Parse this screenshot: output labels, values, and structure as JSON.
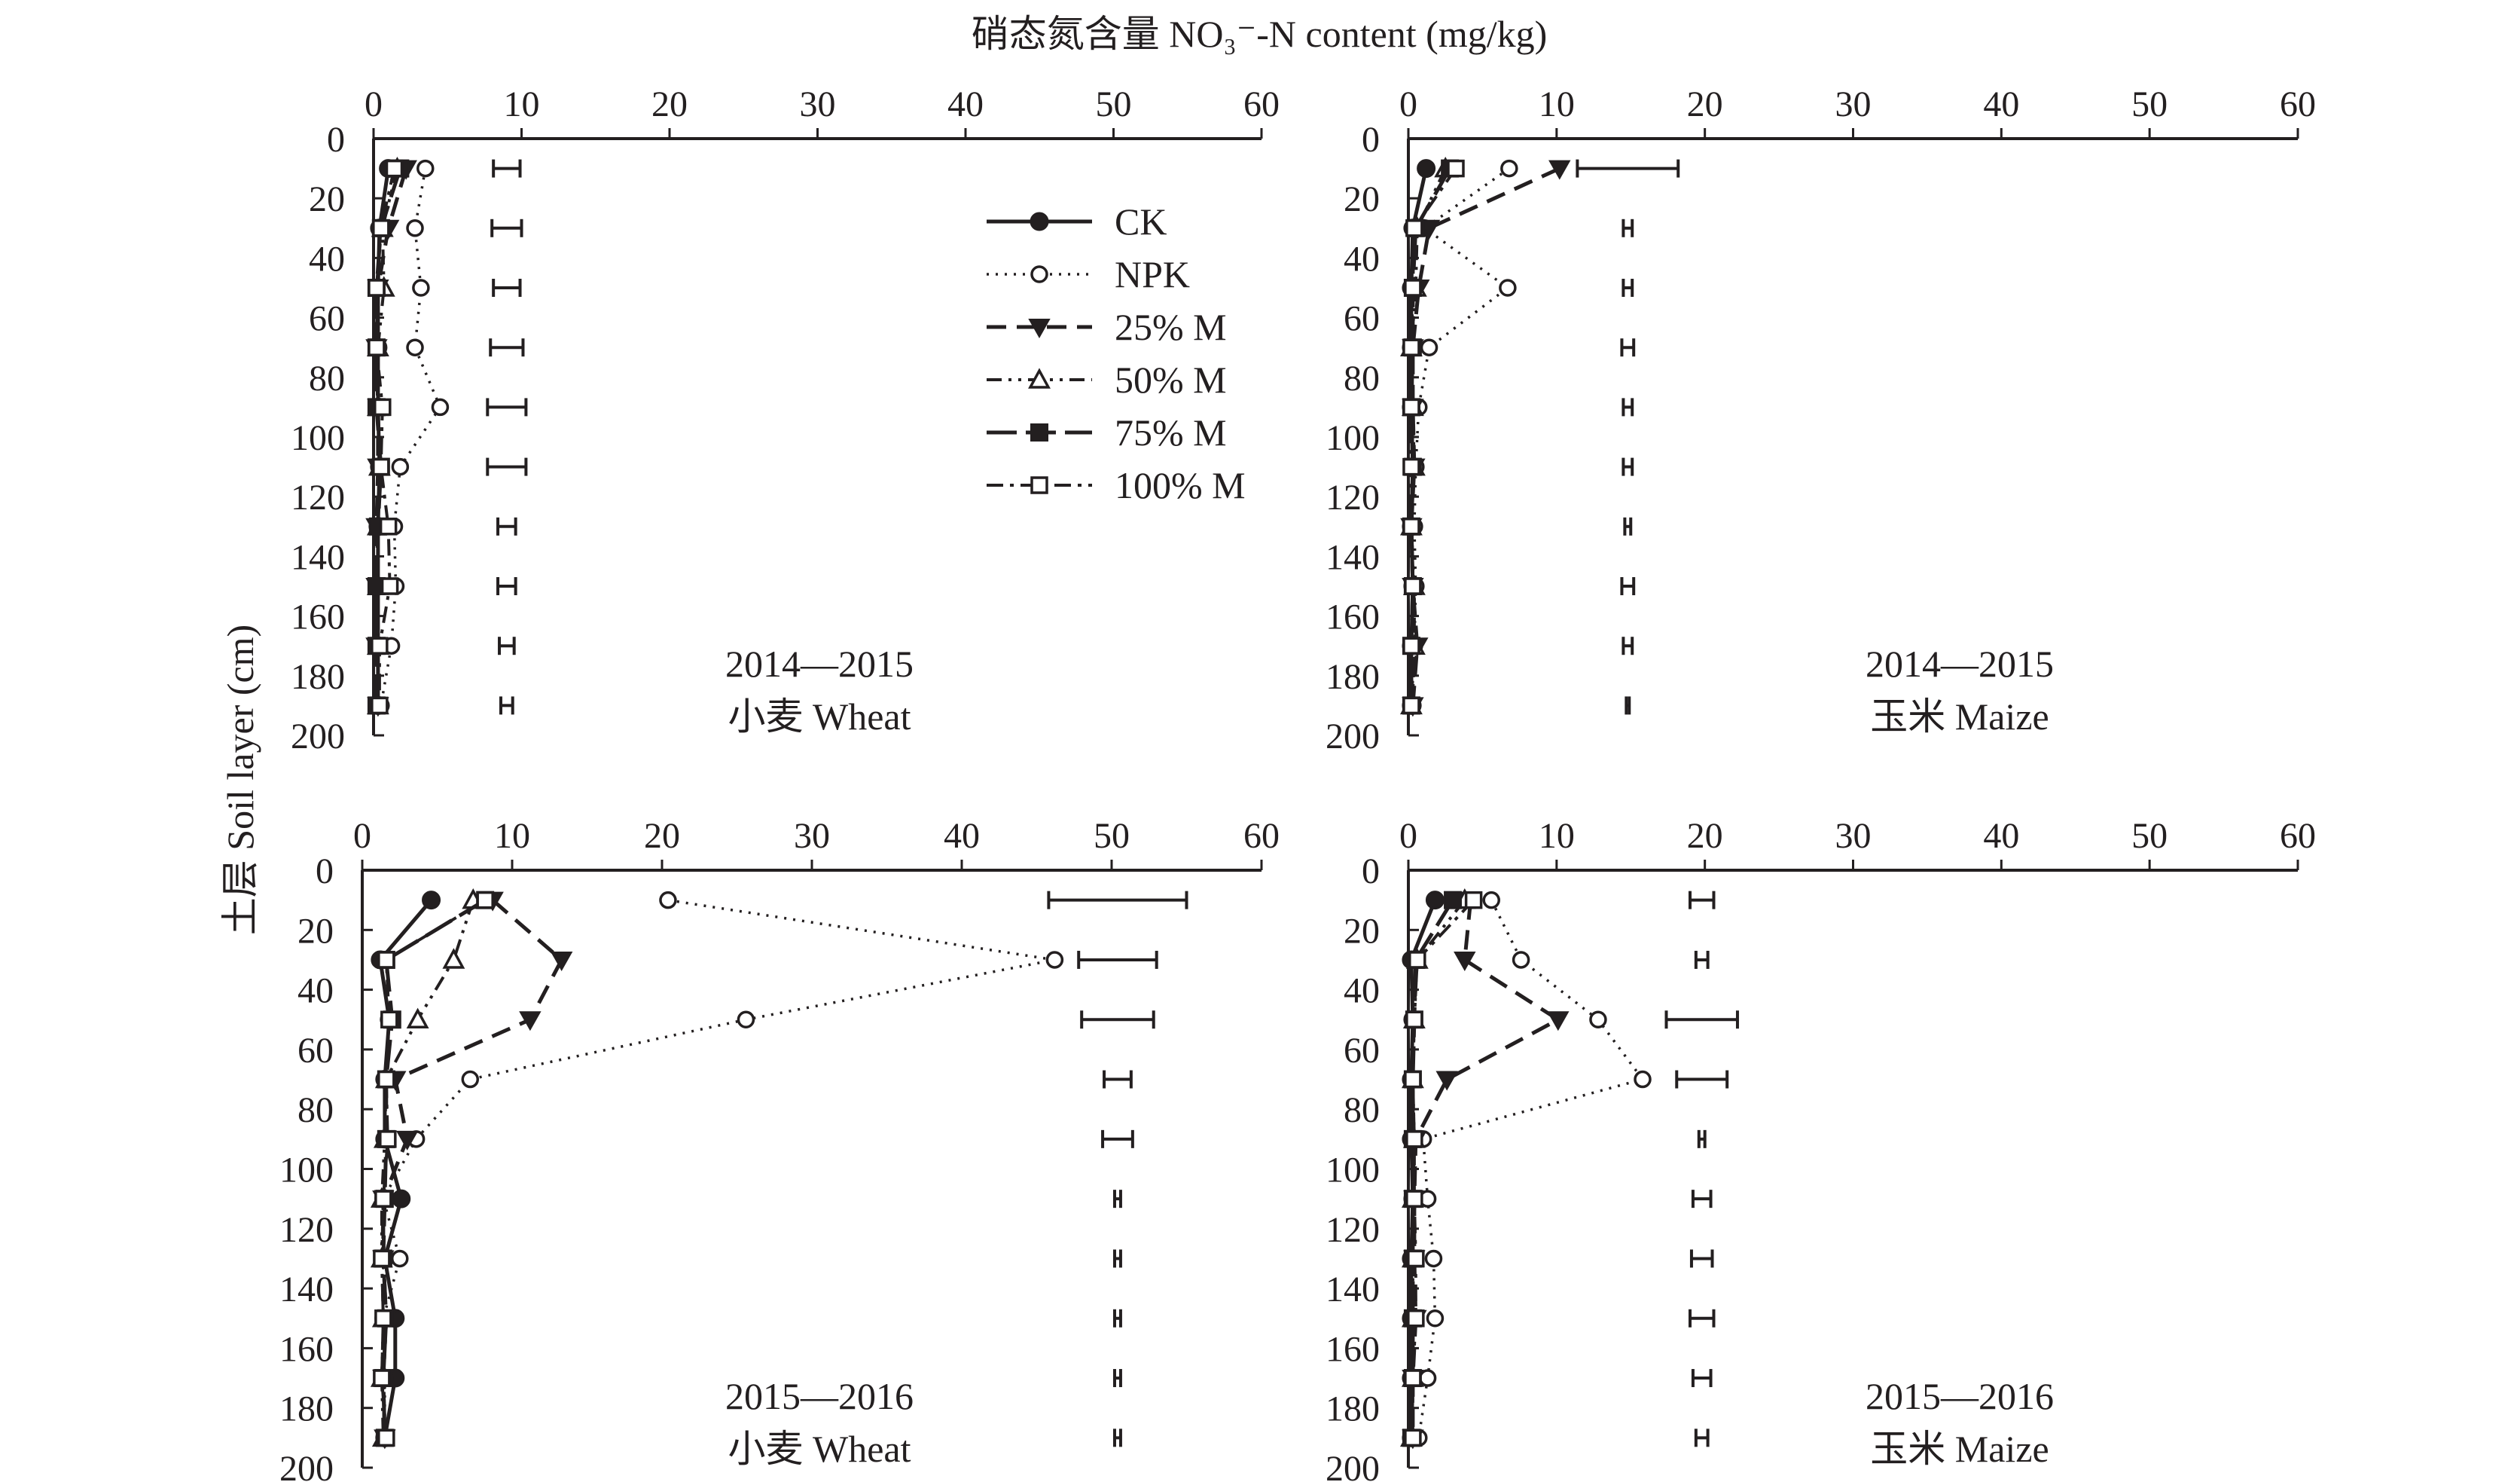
{
  "figure": {
    "x_axis_title": "硝态氮含量 NO₃⁻-N content (mg/kg)",
    "y_axis_title": "土层 Soil layer (cm)"
  },
  "legend": [
    {
      "name": "CK",
      "line": "solid",
      "marker": "circle-filled"
    },
    {
      "name": "NPK",
      "line": "dotted",
      "marker": "circle-open"
    },
    {
      "name": "25% M",
      "line": "dashed",
      "marker": "triangle-down-filled"
    },
    {
      "name": "50% M",
      "line": "dash-dot-dot",
      "marker": "triangle-up-open"
    },
    {
      "name": "75% M",
      "line": "long-dash",
      "marker": "square-filled"
    },
    {
      "name": "100% M",
      "line": "dash-dot",
      "marker": "square-open"
    }
  ],
  "chart_data": [
    {
      "type": "line",
      "panel": "top-left",
      "label_year": "2014—2015",
      "label_crop": "小麦 Wheat",
      "xlim": [
        0,
        60
      ],
      "xticks": [
        0,
        10,
        20,
        30,
        40,
        50,
        60
      ],
      "ylim": [
        0,
        200
      ],
      "yticks": [
        0,
        20,
        40,
        60,
        80,
        100,
        120,
        140,
        160,
        180,
        200
      ],
      "y_reversed": true,
      "depths": [
        10,
        30,
        50,
        70,
        90,
        110,
        130,
        150,
        170,
        190
      ],
      "series": [
        {
          "name": "CK",
          "values": [
            1.0,
            0.4,
            0.3,
            0.3,
            0.3,
            0.4,
            0.3,
            0.3,
            0.3,
            0.3
          ]
        },
        {
          "name": "NPK",
          "values": [
            3.5,
            2.8,
            3.2,
            2.8,
            4.5,
            1.8,
            1.4,
            1.5,
            1.2,
            0.5
          ]
        },
        {
          "name": "25% M",
          "values": [
            2.2,
            1.0,
            0.3,
            0.2,
            0.3,
            0.3,
            0.2,
            0.2,
            0.2,
            0.3
          ]
        },
        {
          "name": "50% M",
          "values": [
            1.6,
            0.6,
            0.7,
            0.3,
            0.3,
            0.4,
            0.3,
            0.3,
            0.3,
            0.3
          ]
        },
        {
          "name": "75% M",
          "values": [
            1.8,
            0.5,
            0.2,
            0.2,
            0.2,
            0.5,
            0.3,
            0.2,
            0.2,
            0.2
          ]
        },
        {
          "name": "100% M",
          "values": [
            1.4,
            0.5,
            0.2,
            0.2,
            0.6,
            0.5,
            1.0,
            1.1,
            0.4,
            0.4
          ]
        }
      ],
      "error_bars": [
        {
          "center": 9.0,
          "half": 0.9
        },
        {
          "center": 9.0,
          "half": 1.0
        },
        {
          "center": 9.0,
          "half": 0.9
        },
        {
          "center": 9.0,
          "half": 1.1
        },
        {
          "center": 9.0,
          "half": 1.3
        },
        {
          "center": 9.0,
          "half": 1.3
        },
        {
          "center": 9.0,
          "half": 0.6
        },
        {
          "center": 9.0,
          "half": 0.6
        },
        {
          "center": 9.0,
          "half": 0.5
        },
        {
          "center": 9.0,
          "half": 0.4
        }
      ]
    },
    {
      "type": "line",
      "panel": "top-right",
      "label_year": "2014—2015",
      "label_crop": "玉米 Maize",
      "xlim": [
        0,
        60
      ],
      "xticks": [
        0,
        10,
        20,
        30,
        40,
        50,
        60
      ],
      "ylim": [
        0,
        200
      ],
      "yticks": [
        0,
        20,
        40,
        60,
        80,
        100,
        120,
        140,
        160,
        180,
        200
      ],
      "y_reversed": true,
      "depths": [
        10,
        30,
        50,
        70,
        90,
        110,
        130,
        150,
        170,
        190
      ],
      "series": [
        {
          "name": "CK",
          "values": [
            1.2,
            0.3,
            0.2,
            0.2,
            0.2,
            0.3,
            0.2,
            0.3,
            0.2,
            0.2
          ]
        },
        {
          "name": "NPK",
          "values": [
            6.8,
            1.1,
            6.7,
            1.4,
            0.7,
            0.5,
            0.4,
            0.5,
            0.4,
            0.3
          ]
        },
        {
          "name": "25% M",
          "values": [
            10.2,
            1.4,
            0.7,
            0.3,
            0.3,
            0.4,
            0.2,
            0.3,
            0.6,
            0.3
          ]
        },
        {
          "name": "50% M",
          "values": [
            2.5,
            0.6,
            0.5,
            0.2,
            0.3,
            0.4,
            0.2,
            0.4,
            0.4,
            0.2
          ]
        },
        {
          "name": "75% M",
          "values": [
            2.8,
            0.5,
            0.3,
            0.3,
            0.2,
            0.3,
            0.2,
            0.3,
            0.2,
            0.2
          ]
        },
        {
          "name": "100% M",
          "values": [
            3.2,
            0.4,
            0.3,
            0.2,
            0.2,
            0.2,
            0.2,
            0.3,
            0.2,
            0.2
          ]
        }
      ],
      "error_bars": [
        {
          "center": 14.8,
          "half": 3.4
        },
        {
          "center": 14.8,
          "half": 0.3
        },
        {
          "center": 14.8,
          "half": 0.3
        },
        {
          "center": 14.8,
          "half": 0.4
        },
        {
          "center": 14.8,
          "half": 0.3
        },
        {
          "center": 14.8,
          "half": 0.3
        },
        {
          "center": 14.8,
          "half": 0.2
        },
        {
          "center": 14.8,
          "half": 0.4
        },
        {
          "center": 14.8,
          "half": 0.3
        },
        {
          "center": 14.8,
          "half": 0.1
        }
      ]
    },
    {
      "type": "line",
      "panel": "bottom-left",
      "label_year": "2015—2016",
      "label_crop": "小麦 Wheat",
      "xlim": [
        0,
        60
      ],
      "xticks": [
        0,
        10,
        20,
        30,
        40,
        50,
        60
      ],
      "ylim": [
        0,
        200
      ],
      "yticks": [
        0,
        20,
        40,
        60,
        80,
        100,
        120,
        140,
        160,
        180,
        200
      ],
      "y_reversed": true,
      "depths": [
        10,
        30,
        50,
        70,
        90,
        110,
        130,
        150,
        170,
        190
      ],
      "series": [
        {
          "name": "CK",
          "values": [
            4.6,
            1.2,
            1.8,
            1.5,
            1.5,
            2.6,
            1.5,
            2.2,
            2.2,
            1.5
          ]
        },
        {
          "name": "NPK",
          "values": [
            20.4,
            46.2,
            25.6,
            7.2,
            3.6,
            1.4,
            2.5,
            1.4,
            1.5,
            1.5
          ]
        },
        {
          "name": "25% M",
          "values": [
            8.7,
            13.3,
            11.2,
            2.2,
            3.0,
            1.4,
            1.4,
            1.6,
            1.4,
            1.5
          ]
        },
        {
          "name": "50% M",
          "values": [
            7.4,
            6.1,
            3.7,
            1.6,
            1.5,
            1.3,
            1.3,
            1.4,
            1.3,
            1.4
          ]
        },
        {
          "name": "75% M",
          "values": [
            8.2,
            1.6,
            2.0,
            1.6,
            1.6,
            1.5,
            1.4,
            1.6,
            1.4,
            1.5
          ]
        },
        {
          "name": "100% M",
          "values": [
            8.2,
            1.6,
            1.8,
            1.6,
            1.7,
            1.4,
            1.3,
            1.4,
            1.3,
            1.6
          ]
        }
      ],
      "error_bars": [
        {
          "center": 50.4,
          "half": 4.6
        },
        {
          "center": 50.4,
          "half": 2.6
        },
        {
          "center": 50.4,
          "half": 2.4
        },
        {
          "center": 50.4,
          "half": 0.9
        },
        {
          "center": 50.4,
          "half": 1.0
        },
        {
          "center": 50.4,
          "half": 0.2
        },
        {
          "center": 50.4,
          "half": 0.2
        },
        {
          "center": 50.4,
          "half": 0.2
        },
        {
          "center": 50.4,
          "half": 0.2
        },
        {
          "center": 50.4,
          "half": 0.2
        }
      ]
    },
    {
      "type": "line",
      "panel": "bottom-right",
      "label_year": "2015—2016",
      "label_crop": "玉米 Maize",
      "xlim": [
        0,
        60
      ],
      "xticks": [
        0,
        10,
        20,
        30,
        40,
        50,
        60
      ],
      "ylim": [
        0,
        200
      ],
      "yticks": [
        0,
        20,
        40,
        60,
        80,
        100,
        120,
        140,
        160,
        180,
        200
      ],
      "y_reversed": true,
      "depths": [
        10,
        30,
        50,
        70,
        90,
        110,
        130,
        150,
        170,
        190
      ],
      "series": [
        {
          "name": "CK",
          "values": [
            1.8,
            0.2,
            0.3,
            0.2,
            0.2,
            0.3,
            0.2,
            0.2,
            0.2,
            0.2
          ]
        },
        {
          "name": "NPK",
          "values": [
            5.6,
            7.6,
            12.8,
            15.8,
            1.0,
            1.3,
            1.7,
            1.8,
            1.3,
            0.7
          ]
        },
        {
          "name": "25% M",
          "values": [
            4.2,
            3.8,
            10.1,
            2.6,
            0.5,
            0.4,
            0.4,
            0.5,
            0.3,
            0.3
          ]
        },
        {
          "name": "50% M",
          "values": [
            3.8,
            0.6,
            0.4,
            0.3,
            0.4,
            0.3,
            0.3,
            0.3,
            0.3,
            0.2
          ]
        },
        {
          "name": "75% M",
          "values": [
            3.0,
            0.5,
            0.4,
            0.3,
            0.3,
            0.3,
            0.3,
            0.3,
            0.3,
            0.2
          ]
        },
        {
          "name": "100% M",
          "values": [
            4.4,
            0.6,
            0.4,
            0.3,
            0.4,
            0.4,
            0.5,
            0.5,
            0.3,
            0.3
          ]
        }
      ],
      "error_bars": [
        {
          "center": 19.8,
          "half": 0.8
        },
        {
          "center": 19.8,
          "half": 0.4
        },
        {
          "center": 19.8,
          "half": 2.4
        },
        {
          "center": 19.8,
          "half": 1.7
        },
        {
          "center": 19.8,
          "half": 0.2
        },
        {
          "center": 19.8,
          "half": 0.6
        },
        {
          "center": 19.8,
          "half": 0.7
        },
        {
          "center": 19.8,
          "half": 0.8
        },
        {
          "center": 19.8,
          "half": 0.6
        },
        {
          "center": 19.8,
          "half": 0.4
        }
      ]
    }
  ]
}
